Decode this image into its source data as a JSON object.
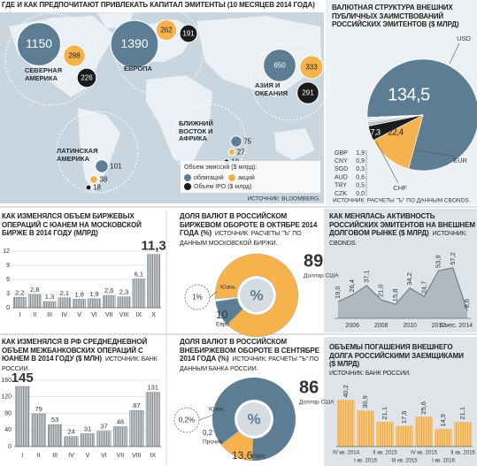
{
  "chart_data": [
    {
      "type": "bubble-map",
      "title": "ГДЕ И КАК ПРЕДПОЧИТАЮТ ПРИВЛЕКАТЬ КАПИТАЛ ЭМИТЕНТЫ (10 МЕСЯЦЕВ 2014 ГОДА)",
      "categories": [
        "СЕВЕРНАЯ АМЕРИКА",
        "ЕВРОПА",
        "АЗИЯ И ОКЕАНИЯ",
        "БЛИЖНИЙ ВОСТОК И АФРИКА",
        "ЛАТИНСКАЯ АМЕРИКА"
      ],
      "legend_title": "Объем эмиссий ($ млрд):",
      "series": [
        {
          "name": "облигаций",
          "color": "#5d7d94",
          "values": [
            1150,
            1390,
            650,
            75,
            101
          ]
        },
        {
          "name": "акций",
          "color": "#f6b24c",
          "values": [
            288,
            262,
            333,
            27,
            38
          ]
        },
        {
          "name": "Объем IPO ($ млрд)",
          "color": "#1b1b1b",
          "values": [
            226,
            191,
            291,
            19,
            18
          ]
        }
      ],
      "source": "ИСТОЧНИК: BLOOMBERG."
    },
    {
      "type": "pie",
      "title": "ВАЛЮТНАЯ СТРУКТУРА ВНЕШНИХ ПУБЛИЧНЫХ ЗАИМСТВОВАНИЙ РОССИЙСКИХ ЭМИТЕНТОВ ($ МЛРД)",
      "categories": [
        "USD",
        "EUR",
        "CHF",
        "GBP",
        "CNY",
        "SGD",
        "AUD",
        "TRY",
        "CZK"
      ],
      "values": [
        134.5,
        22.4,
        7.3,
        1.9,
        0.9,
        0.3,
        0.6,
        0.5,
        0
      ],
      "value_labels": [
        "134,5",
        "22,4",
        "7,3",
        "1,9",
        "0,9",
        "0,3",
        "0,6",
        "0,5",
        "0,0"
      ],
      "colors": [
        "#5d7d94",
        "#f6b24c",
        "#1b1b1b",
        "#b9c4cc",
        "#c9d2d8",
        "#b9c4cc",
        "#c9d2d8",
        "#b9c4cc",
        "#c9d2d8"
      ],
      "source": "ИСТОЧНИК: РАСЧЕТЫ \"Ъ\" ПО ДАННЫМ CBONDS."
    },
    {
      "type": "bar",
      "title": "КАК ИЗМЕНЯЛСЯ ОБЪЕМ БИРЖЕВЫХ ОПЕРАЦИЙ С ЮАНЕМ НА МОСКОВСКОЙ БИРЖЕ В 2014 ГОДУ (МЛРД)",
      "categories": [
        "I",
        "II",
        "III",
        "IV",
        "V",
        "VI",
        "VII",
        "VIII",
        "IX",
        "X"
      ],
      "values": [
        2.2,
        2.8,
        1.3,
        2.1,
        1.8,
        1.9,
        2.6,
        2.3,
        6.1,
        11.3
      ],
      "value_labels": [
        "2,2",
        "2,8",
        "1,3",
        "2,1",
        "1,8",
        "1,9",
        "2,6",
        "2,3",
        "6,1",
        "11,3"
      ],
      "color": "#7f868b",
      "ylim": [
        0,
        12
      ],
      "yticks": [
        0,
        3,
        6,
        9,
        12
      ],
      "grid": true
    },
    {
      "type": "donut",
      "title": "ДОЛЯ ВАЛЮТ В РОССИЙСКОМ БИРЖЕВОМ ОБОРОТЕ В ОКТЯБРЕ 2014 ГОДА (%)",
      "source": "ИСТОЧНИК: РАСЧЕТЫ \"Ъ\" ПО ДАННЫМ МОСКОВСКОЙ БИРЖИ.",
      "center_label": "%",
      "categories": [
        "Доллар США",
        "Евро",
        "Юань"
      ],
      "values": [
        89,
        10,
        1
      ],
      "value_labels": [
        "89",
        "10",
        "1%"
      ],
      "colors": [
        "#f6b24c",
        "#5d7d94",
        "#ffffff"
      ]
    },
    {
      "type": "line",
      "title": "КАК МЕНЯЛАСЬ АКТИВНОСТЬ РОССИЙСКИХ ЭМИТЕНТОВ НА ВНЕШНЕМ ДОЛГОВОМ РЫНКЕ ($ МЛРД)",
      "source": "ИСТОЧНИК: CBONDS.",
      "categories": [
        null,
        "2006",
        null,
        "2008",
        null,
        "2010",
        null,
        "2012",
        null,
        "9 мес. 2014"
      ],
      "values": [
        19.0,
        26.4,
        37.1,
        21.0,
        15.8,
        34.2,
        24.7,
        53.9,
        57.2,
        8.6
      ],
      "value_labels": [
        "19,0",
        "26,4",
        "37,1",
        "21,0",
        "15,8",
        "34,2",
        "24,7",
        "53,9",
        "57,2",
        "8,6"
      ],
      "color": "#6f808c",
      "ylim": [
        0,
        60
      ]
    },
    {
      "type": "bar",
      "title": "КАК ИЗМЕНЯЛСЯ В РФ СРЕДНЕДНЕВНОЙ ОБЪЕМ МЕЖБАНКОВСКИХ ОПЕРАЦИЙ С ЮАНЕМ В 2014 ГОДУ ($ МЛН)",
      "source": "ИСТОЧНИК: БАНК РОССИИ.",
      "categories": [
        "I",
        "II",
        "III",
        "IV",
        "V",
        "VI",
        "VII",
        "VIII",
        "IX"
      ],
      "values": [
        145,
        79,
        53,
        24,
        31,
        37,
        48,
        87,
        131
      ],
      "color": "#7f868b",
      "ylim": [
        0,
        160
      ],
      "yticks": [
        0,
        40,
        80,
        120,
        160
      ],
      "grid": true
    },
    {
      "type": "donut",
      "title": "ДОЛЯ ВАЛЮТ В РОССИЙСКОМ ВНЕБИРЖЕВОМ ОБОРОТЕ В СЕНТЯБРЕ 2014 ГОДА (%)",
      "source": "ИСТОЧНИК: РАСЧЕТЫ \"Ъ\" ПО ДАННЫМ БАНКА РОССИИ.",
      "center_label": "%",
      "categories": [
        "Доллар США",
        "Евро",
        "Юань",
        "Прочие"
      ],
      "values": [
        86,
        13.6,
        0.2,
        0.2
      ],
      "value_labels": [
        "86",
        "13,6",
        "0,2%",
        "0,2"
      ],
      "colors": [
        "#5d7d94",
        "#f6b24c",
        "#ffffff",
        "#1b1b1b"
      ]
    },
    {
      "type": "bar",
      "title": "ОБЪЕМЫ ПОГАШЕНИЯ ВНЕШНЕГО ДОЛГА РОССИЙСКИМИ ЗАЕМЩИКАМИ ($ МЛРД)",
      "source": "ИСТОЧНИК: БАНК РОССИИ.",
      "categories": [
        "IV кв. 2014",
        "I кв. 2015",
        "II кв. 2015",
        "III кв. 2015",
        "IV кв. 2015",
        "I кв. 2016",
        "II кв. 2016"
      ],
      "values": [
        40.2,
        30.9,
        21.1,
        17.6,
        25.6,
        14.9,
        21.1
      ],
      "value_labels": [
        "40,2",
        "30,9",
        "21,1",
        "17,6",
        "25,6",
        "14,9",
        "21,1"
      ],
      "color": "#f0a63c",
      "ylim": [
        0,
        50
      ]
    }
  ]
}
